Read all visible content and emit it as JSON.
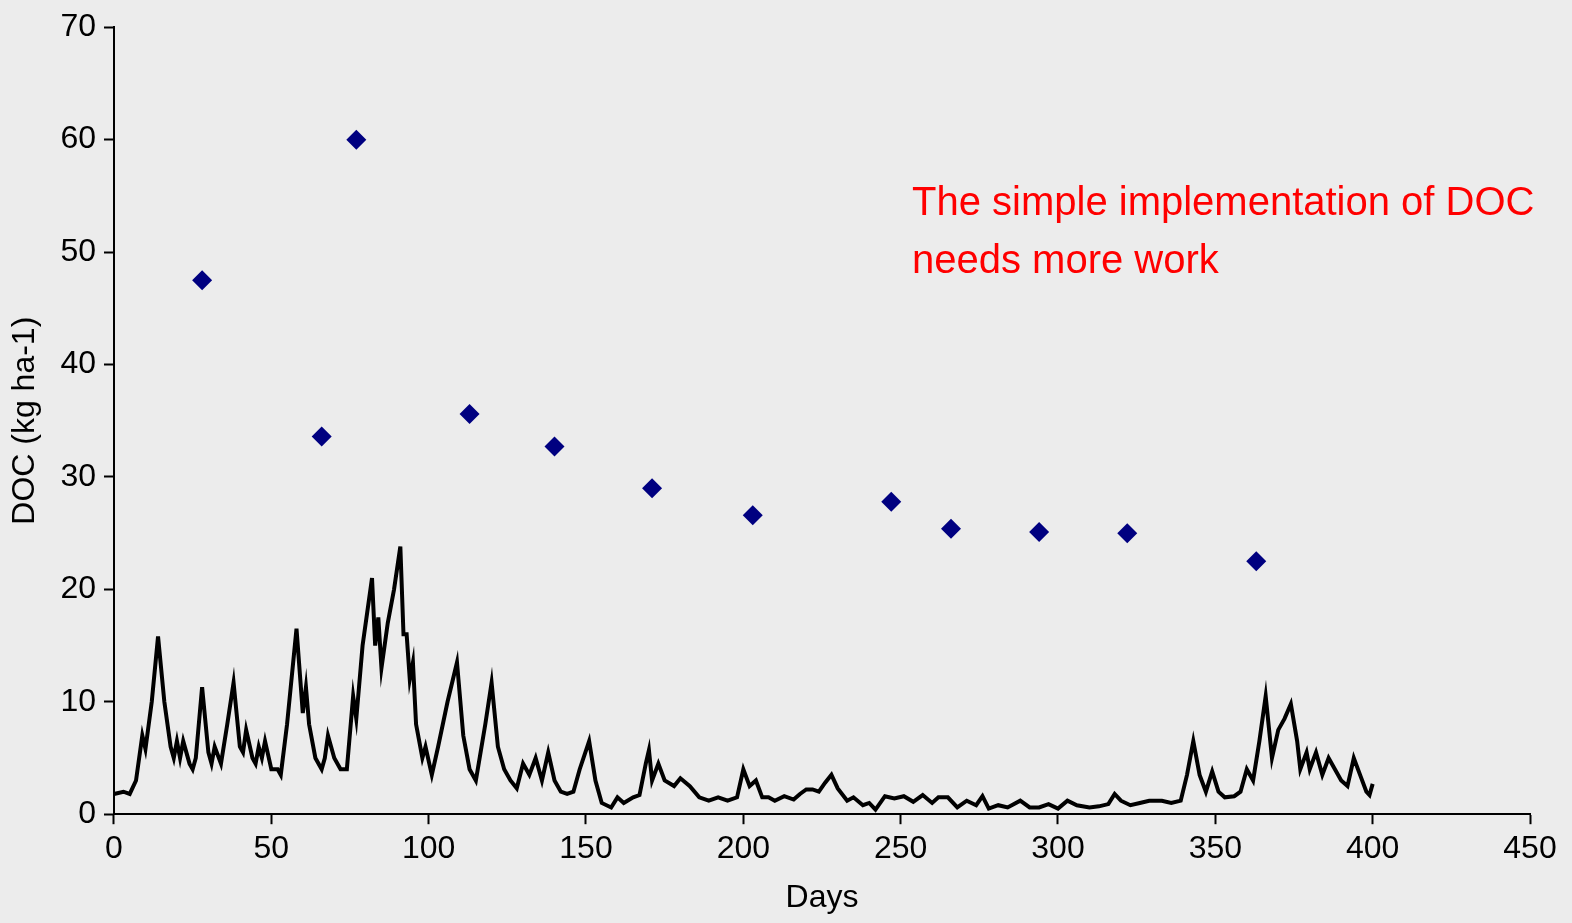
{
  "chart_data": {
    "type": "scatter",
    "x_label": "Days",
    "y_label": "DOC (kg ha-1)",
    "annotation": "The simple implementation of DOC needs more work",
    "xlim": [
      0,
      450
    ],
    "xticks": [
      0,
      50,
      100,
      150,
      200,
      250,
      300,
      350,
      400,
      450
    ],
    "ylim": [
      0,
      70
    ],
    "yticks": [
      0,
      10,
      20,
      30,
      40,
      50,
      60,
      70
    ],
    "grid": false,
    "series": [
      {
        "type": "scatter",
        "color": "#000080",
        "marker": "diamond",
        "x": [
          28,
          66,
          77,
          113,
          140,
          171,
          203,
          247,
          266,
          294,
          322,
          363
        ],
        "values": [
          47.5,
          33.6,
          60,
          35.6,
          32.7,
          29,
          26.6,
          27.8,
          25.4,
          25.1,
          25,
          22.5
        ]
      },
      {
        "type": "line",
        "color": "#000000",
        "line_style": "solid",
        "x": [
          0,
          3,
          5,
          7,
          9,
          10,
          12,
          14,
          16,
          18,
          19,
          20,
          21,
          22,
          24,
          25,
          26,
          28,
          30,
          31,
          32,
          34,
          36,
          38,
          40,
          41,
          42,
          44,
          45,
          46,
          47,
          48,
          50,
          52,
          53,
          55,
          58,
          60,
          61,
          62,
          64,
          66,
          67,
          68,
          70,
          72,
          74,
          76,
          77,
          79,
          82,
          83,
          84,
          85,
          87,
          89,
          91,
          92,
          93,
          94,
          95,
          96,
          98,
          99,
          101,
          103,
          106,
          109,
          111,
          113,
          115,
          118,
          120,
          122,
          124,
          126,
          128,
          130,
          132,
          134,
          136,
          138,
          140,
          142,
          144,
          146,
          148,
          151,
          153,
          155,
          158,
          160,
          162,
          165,
          167,
          169,
          170,
          171,
          173,
          175,
          178,
          180,
          183,
          186,
          189,
          192,
          195,
          198,
          200,
          202,
          204,
          206,
          208,
          210,
          213,
          216,
          218,
          220,
          222,
          224,
          226,
          228,
          230,
          233,
          235,
          238,
          240,
          242,
          245,
          248,
          251,
          254,
          257,
          260,
          262,
          265,
          268,
          271,
          274,
          276,
          278,
          281,
          284,
          288,
          291,
          294,
          297,
          300,
          303,
          306,
          310,
          313,
          316,
          318,
          320,
          323,
          326,
          329,
          333,
          336,
          339,
          341,
          343,
          345,
          347,
          349,
          351,
          353,
          356,
          358,
          360,
          362,
          364,
          366,
          368,
          370,
          372,
          374,
          376,
          377,
          379,
          380,
          382,
          384,
          386,
          388,
          390,
          392,
          394,
          396,
          398,
          399,
          400
        ],
        "values": [
          1.8,
          2,
          1.8,
          3,
          7,
          5.8,
          10,
          15.8,
          10,
          6,
          5,
          6.5,
          5,
          6.5,
          4.5,
          4,
          5,
          11.3,
          5.5,
          4.5,
          6,
          4.5,
          8,
          11.7,
          6,
          5.5,
          7.5,
          5,
          4.5,
          6,
          5,
          6.5,
          4,
          4,
          3.5,
          8,
          16.5,
          9,
          11.3,
          8,
          5,
          4,
          5,
          7,
          5,
          4,
          4,
          10.5,
          8.5,
          15,
          21,
          15,
          17.5,
          13,
          17,
          20,
          23.8,
          16,
          16,
          12,
          13.5,
          8,
          5,
          6,
          3.5,
          6,
          10,
          13.5,
          7,
          4,
          3,
          8,
          11.7,
          6,
          4,
          3,
          2.3,
          4.5,
          3.5,
          5,
          3,
          5.5,
          3,
          2,
          1.8,
          2,
          4,
          6.5,
          3,
          1,
          0.6,
          1.5,
          1,
          1.5,
          1.7,
          4.5,
          5.7,
          3,
          4.5,
          3,
          2.5,
          3.2,
          2.5,
          1.5,
          1.2,
          1.5,
          1.2,
          1.5,
          4,
          2.5,
          3,
          1.5,
          1.5,
          1.2,
          1.6,
          1.3,
          1.8,
          2.2,
          2.2,
          2,
          2.8,
          3.5,
          2.3,
          1.2,
          1.5,
          0.8,
          1,
          0.4,
          1.6,
          1.4,
          1.6,
          1.1,
          1.7,
          1,
          1.5,
          1.5,
          0.6,
          1.2,
          0.8,
          1.6,
          0.5,
          0.8,
          0.6,
          1.2,
          0.6,
          0.6,
          0.9,
          0.5,
          1.2,
          0.8,
          0.6,
          0.7,
          0.9,
          1.8,
          1.2,
          0.8,
          1,
          1.2,
          1.2,
          1,
          1.2,
          3.5,
          6.5,
          3.5,
          2,
          3.8,
          2,
          1.5,
          1.6,
          2,
          4,
          3,
          6.5,
          10.5,
          5,
          7.5,
          8.5,
          9.8,
          6.5,
          4,
          5.5,
          4,
          5.5,
          3.5,
          5,
          4,
          3,
          2.5,
          5,
          3.5,
          2,
          1.7,
          2.7
        ]
      }
    ]
  }
}
